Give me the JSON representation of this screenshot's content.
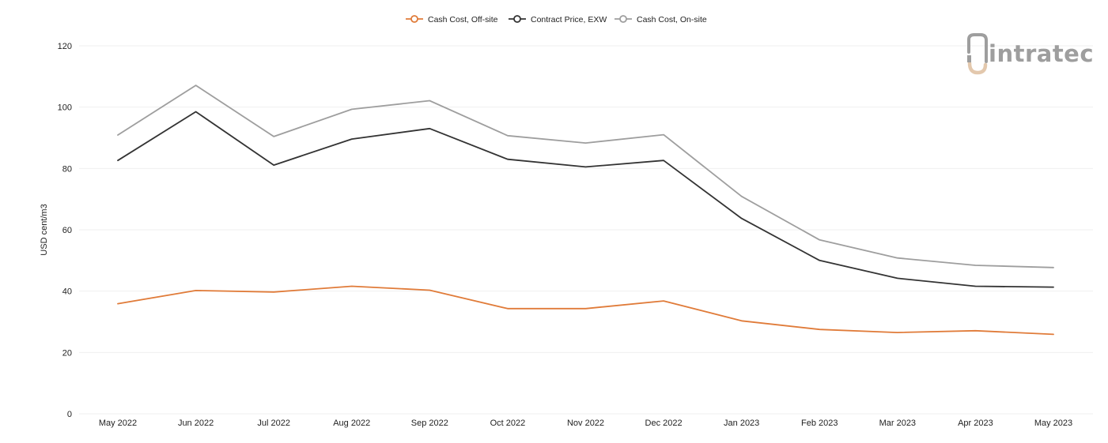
{
  "chart_data": {
    "type": "line",
    "title": "",
    "xlabel": "",
    "ylabel": "USD cent/m3",
    "ylim": [
      0,
      120
    ],
    "yticks": [
      0,
      20,
      40,
      60,
      80,
      100,
      120
    ],
    "grid": true,
    "legend_position": "top-center",
    "categories": [
      "May 2022",
      "Jun 2022",
      "Jul 2022",
      "Aug 2022",
      "Sep 2022",
      "Oct 2022",
      "Nov 2022",
      "Dec 2022",
      "Jan 2023",
      "Feb 2023",
      "Mar 2023",
      "Apr 2023",
      "May 2023"
    ],
    "series": [
      {
        "name": "Cash Cost, Off-site",
        "color": "#e07b39",
        "values": [
          35.9,
          40.2,
          39.7,
          41.6,
          40.3,
          34.3,
          34.3,
          36.8,
          30.3,
          27.5,
          26.5,
          27.1,
          25.9
        ]
      },
      {
        "name": "Contract Price, EXW",
        "color": "#333333",
        "values": [
          82.6,
          98.5,
          81.1,
          89.6,
          93.0,
          83.0,
          80.5,
          82.6,
          63.7,
          50.0,
          44.2,
          41.6,
          41.3
        ]
      },
      {
        "name": "Cash Cost, On-site",
        "color": "#9e9e9e",
        "values": [
          90.9,
          107.1,
          90.4,
          99.3,
          102.1,
          90.7,
          88.3,
          91.0,
          70.9,
          56.7,
          50.8,
          48.4,
          47.7
        ]
      }
    ]
  },
  "logo": {
    "text": "intratec"
  }
}
